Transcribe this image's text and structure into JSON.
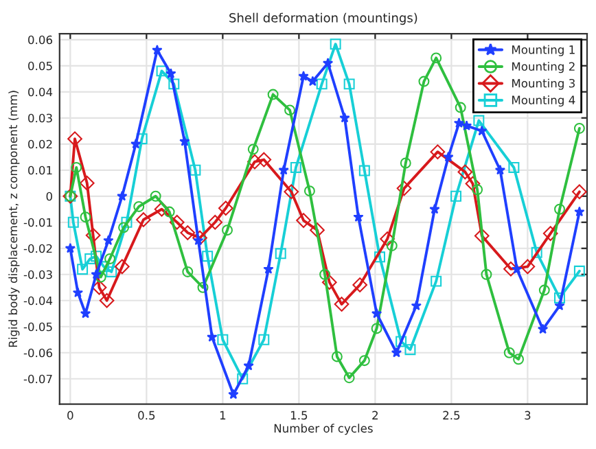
{
  "chart_data": {
    "type": "line",
    "title": "Shell deformation (mountings)",
    "xlabel": "Number of cycles",
    "ylabel": "Rigid body displacement, z component (mm)",
    "xlim": [
      -0.07,
      3.39
    ],
    "ylim": [
      -0.0797,
      0.0623
    ],
    "xticks": [
      0,
      0.5,
      1,
      1.5,
      2,
      2.5,
      3
    ],
    "yticks": [
      -0.07,
      -0.06,
      -0.05,
      -0.04,
      -0.03,
      -0.02,
      -0.01,
      0,
      0.01,
      0.02,
      0.03,
      0.04,
      0.05,
      0.06
    ],
    "grid": true,
    "legend": "top right",
    "line_style": "solid",
    "series": [
      {
        "name": "Mounting 1",
        "color": "#1f3fff",
        "marker": "star",
        "x": [
          0,
          0.05,
          0.1,
          0.17,
          0.25,
          0.34,
          0.43,
          0.57,
          0.66,
          0.75,
          0.84,
          0.93,
          1.07,
          1.17,
          1.3,
          1.4,
          1.53,
          1.59,
          1.69,
          1.8,
          1.89,
          2.01,
          2.14,
          2.27,
          2.39,
          2.48,
          2.55,
          2.6,
          2.7,
          2.82,
          2.93,
          3.1,
          3.21,
          3.34
        ],
        "values": [
          -0.02,
          -0.037,
          -0.045,
          -0.03,
          -0.017,
          0.0,
          0.02,
          0.056,
          0.047,
          0.021,
          -0.017,
          -0.054,
          -0.076,
          -0.065,
          -0.028,
          0.01,
          0.046,
          0.044,
          0.051,
          0.03,
          -0.008,
          -0.045,
          -0.06,
          -0.042,
          -0.005,
          0.015,
          0.028,
          0.027,
          0.025,
          0.01,
          -0.028,
          -0.051,
          -0.042,
          -0.006
        ]
      },
      {
        "name": "Mounting 2",
        "color": "#2fbf3f",
        "marker": "circle",
        "x": [
          0,
          0.04,
          0.1,
          0.2,
          0.26,
          0.35,
          0.45,
          0.56,
          0.65,
          0.77,
          0.87,
          1.03,
          1.2,
          1.33,
          1.44,
          1.57,
          1.67,
          1.75,
          1.83,
          1.93,
          2.01,
          2.11,
          2.2,
          2.32,
          2.4,
          2.56,
          2.67,
          2.73,
          2.88,
          2.94,
          3.11,
          3.21,
          3.34
        ],
        "values": [
          0.0,
          0.011,
          -0.008,
          -0.031,
          -0.024,
          -0.012,
          -0.004,
          0.0,
          -0.006,
          -0.029,
          -0.035,
          -0.013,
          0.018,
          0.039,
          0.033,
          0.002,
          -0.03,
          -0.0615,
          -0.0696,
          -0.063,
          -0.0507,
          -0.019,
          0.0127,
          0.044,
          0.053,
          0.034,
          0.0025,
          -0.03,
          -0.06,
          -0.0625,
          -0.036,
          -0.005,
          0.026
        ]
      },
      {
        "name": "Mounting 3",
        "color": "#d7191c",
        "marker": "diamond",
        "x": [
          0,
          0.03,
          0.11,
          0.15,
          0.19,
          0.24,
          0.34,
          0.48,
          0.6,
          0.7,
          0.77,
          0.85,
          0.95,
          1.02,
          1.21,
          1.27,
          1.45,
          1.53,
          1.62,
          1.7,
          1.78,
          1.9,
          2.08,
          2.19,
          2.41,
          2.59,
          2.64,
          2.7,
          2.89,
          3.0,
          3.15,
          3.34
        ],
        "values": [
          0.0,
          0.022,
          0.005,
          -0.015,
          -0.035,
          -0.04,
          -0.027,
          -0.009,
          -0.005,
          -0.01,
          -0.014,
          -0.016,
          -0.01,
          -0.0046,
          0.0132,
          0.014,
          0.0017,
          -0.0093,
          -0.013,
          -0.033,
          -0.0414,
          -0.034,
          -0.0164,
          0.003,
          0.017,
          0.0093,
          0.0048,
          -0.0152,
          -0.0279,
          -0.027,
          -0.0143,
          0.0017
        ]
      },
      {
        "name": "Mounting 4",
        "color": "#17cfd6",
        "marker": "square",
        "x": [
          0,
          0.02,
          0.08,
          0.13,
          0.17,
          0.22,
          0.27,
          0.37,
          0.47,
          0.6,
          0.68,
          0.82,
          0.9,
          1.0,
          1.13,
          1.27,
          1.38,
          1.48,
          1.65,
          1.74,
          1.83,
          1.93,
          2.03,
          2.17,
          2.23,
          2.4,
          2.53,
          2.68,
          2.91,
          3.06,
          3.21,
          3.34
        ],
        "values": [
          0.0,
          -0.01,
          -0.028,
          -0.024,
          -0.023,
          -0.027,
          -0.029,
          -0.01,
          0.022,
          0.048,
          0.043,
          0.01,
          -0.023,
          -0.055,
          -0.07,
          -0.055,
          -0.022,
          0.011,
          0.043,
          0.0583,
          0.043,
          0.0098,
          -0.0233,
          -0.0557,
          -0.0588,
          -0.0326,
          0.0,
          0.029,
          0.011,
          -0.0216,
          -0.039,
          -0.0287
        ]
      }
    ]
  }
}
